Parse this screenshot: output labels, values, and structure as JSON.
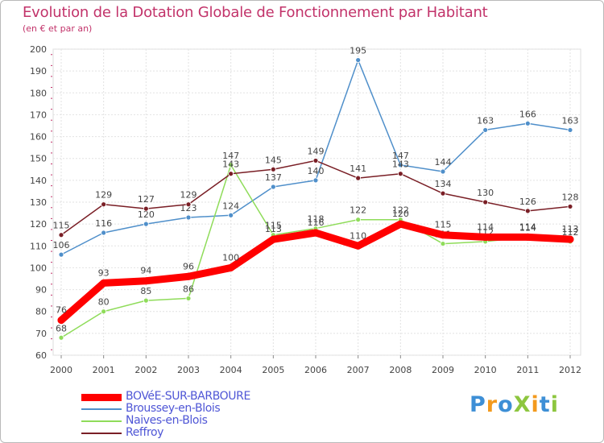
{
  "title": "Evolution de la Dotation Globale de Fonctionnement par Habitant",
  "subtitle": "(en € et par an)",
  "logo_text": "ProXiti",
  "chart_data": {
    "type": "line",
    "title": "Evolution de la Dotation Globale de Fonctionnement par Habitant",
    "subtitle": "(en € et par an)",
    "xlabel": "",
    "ylabel": "",
    "ylim": [
      60,
      200
    ],
    "y_ticks": [
      60,
      70,
      80,
      90,
      100,
      110,
      120,
      130,
      140,
      150,
      160,
      170,
      180,
      190,
      200
    ],
    "categories": [
      "2000",
      "2001",
      "2002",
      "2003",
      "2004",
      "2005",
      "2006",
      "2007",
      "2008",
      "2009",
      "2010",
      "2011",
      "2012"
    ],
    "grid": true,
    "legend_position": "bottom-left",
    "series": [
      {
        "name": "Broussey-en-Blois",
        "color": "#4f8fca",
        "values": [
          106,
          116,
          120,
          123,
          124,
          137,
          140,
          195,
          147,
          144,
          163,
          166,
          163
        ]
      },
      {
        "name": "Naives-en-Blois",
        "color": "#8fdc5a",
        "values": [
          68,
          80,
          85,
          86,
          147,
          115,
          118,
          122,
          122,
          111,
          112,
          114,
          112
        ]
      },
      {
        "name": "Reffroy",
        "color": "#7a1f26",
        "values": [
          115,
          129,
          127,
          129,
          143,
          145,
          149,
          141,
          143,
          134,
          130,
          126,
          128
        ]
      },
      {
        "name": "BOVéE-SUR-BARBOURE",
        "color": "#ff0000",
        "values": [
          76,
          93,
          94,
          96,
          100,
          113,
          116,
          110,
          120,
          115,
          114,
          114,
          113
        ],
        "highlight": true
      }
    ]
  },
  "legend": [
    {
      "name": "BOVéE-SUR-BARBOURE",
      "color": "#ff0000"
    },
    {
      "name": "Broussey-en-Blois",
      "color": "#4f8fca"
    },
    {
      "name": "Naives-en-Blois",
      "color": "#8fdc5a"
    },
    {
      "name": "Reffroy",
      "color": "#7a1f26"
    }
  ]
}
